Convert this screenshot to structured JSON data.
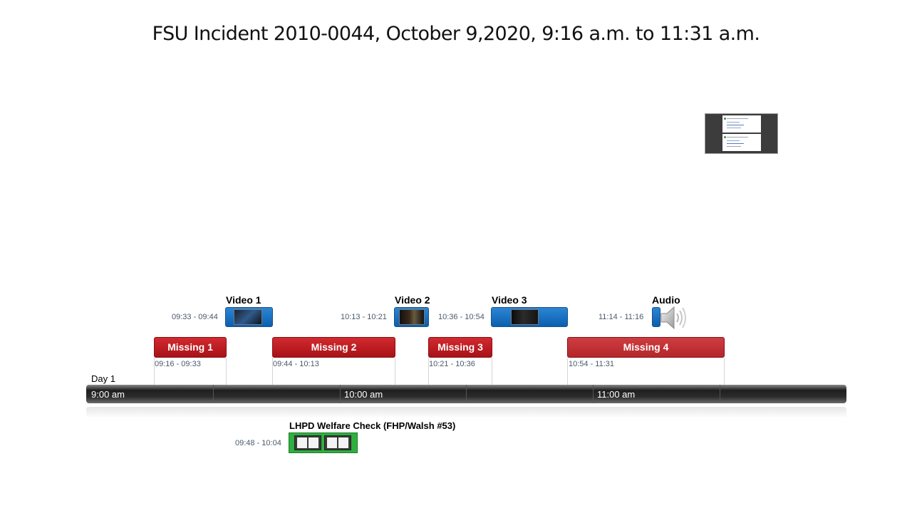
{
  "title": "FSU Incident 2010-0044, October 9,2020,  9:16 a.m. to 11:31 a.m.",
  "day_label": "Day 1",
  "axis_labels": [
    "9:00 am",
    "10:00 am",
    "11:00 am"
  ],
  "media_items": [
    {
      "label": "Video 1",
      "time": "09:33 - 09:44"
    },
    {
      "label": "Video 2",
      "time": "10:13 - 10:21"
    },
    {
      "label": "Video 3",
      "time": "10:36 - 10:54"
    },
    {
      "label": "Audio",
      "time": "11:14 - 11:16"
    }
  ],
  "missing_items": [
    {
      "label": "Missing 1",
      "time": "09:16 - 09:33"
    },
    {
      "label": "Missing 2",
      "time": "09:44 - 10:13"
    },
    {
      "label": "Missing 3",
      "time": "10:21 - 10:36"
    },
    {
      "label": "Missing 4",
      "time": "10:54 - 11:31"
    }
  ],
  "welfare_check": {
    "label": "LHPD Welfare Check (FHP/Walsh #53)",
    "time": "09:48 - 10:04"
  },
  "colors": {
    "media": "#0b6cc0",
    "missing": "#b5151b",
    "welfare": "#2eb03f",
    "axis": "#2a2a2a"
  },
  "icons": {
    "audio": "speaker-icon",
    "thumbnail": "document-preview"
  }
}
